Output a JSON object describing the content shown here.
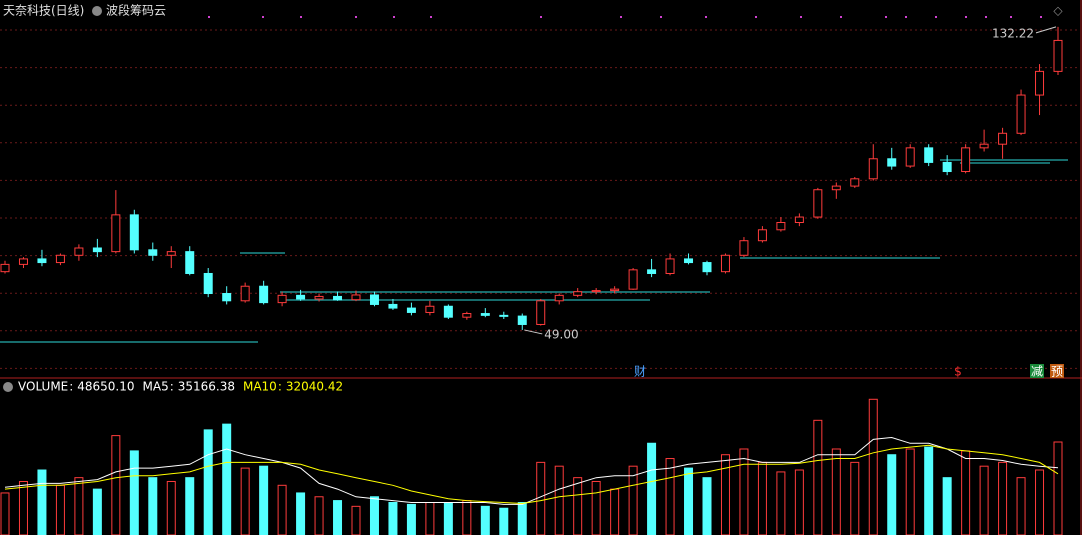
{
  "chart_data": [
    {
      "type": "candlestick",
      "title": "天奈科技(日线)",
      "subtitle": "波段筹码云",
      "ylim": [
        35.8,
        139.6
      ],
      "up_color": "#ff3c3c",
      "down_color": "#54ffff",
      "open": [
        65,
        67,
        68.5,
        67.5,
        69.5,
        71.5,
        70.5,
        80.6,
        71,
        69.5,
        70.5,
        64.5,
        59,
        57,
        61,
        56.5,
        58.5,
        57.5,
        58.2,
        57.3,
        58.6,
        56,
        55,
        53.8,
        55.5,
        52.5,
        53.5,
        53,
        52.8,
        50.5,
        57,
        58.5,
        59.5,
        59.8,
        60.2,
        65.5,
        64.5,
        68.5,
        67.5,
        65,
        69.5,
        73.5,
        76.5,
        78.5,
        80,
        87.5,
        88.5,
        90.5,
        96,
        94,
        99,
        95,
        92.5,
        99,
        100,
        103,
        113.5,
        120
      ],
      "high": [
        68,
        69,
        71,
        70,
        72.5,
        74,
        87.4,
        82,
        73,
        72,
        72,
        66,
        61,
        62,
        62.5,
        59.5,
        60,
        59,
        59.5,
        59.8,
        59.5,
        57.5,
        56.5,
        57,
        56,
        54,
        55,
        54,
        53.5,
        57.5,
        59,
        60.5,
        60.5,
        61,
        66,
        68.5,
        70,
        70,
        68,
        70,
        74.5,
        77.5,
        80,
        81,
        88,
        89.5,
        91,
        100,
        99,
        100,
        100,
        97,
        100,
        104,
        104.5,
        115,
        122,
        132.22
      ],
      "low": [
        64.5,
        66,
        66.5,
        66.8,
        68,
        69,
        70,
        70,
        68,
        66,
        64,
        58,
        56,
        56.5,
        56,
        55.5,
        57,
        56.8,
        57,
        56.9,
        55.5,
        54.5,
        53,
        53,
        52,
        51.8,
        52.5,
        52,
        49,
        50.2,
        56,
        58,
        58.8,
        59,
        60,
        63.5,
        64,
        67,
        64,
        64.5,
        69,
        73,
        76,
        77.5,
        79.5,
        85,
        88,
        90,
        93,
        93.5,
        94,
        91.5,
        92,
        98,
        96,
        102.5,
        108,
        119
      ],
      "close": [
        67,
        68.5,
        67.5,
        69.5,
        71.5,
        70.5,
        80.6,
        71,
        69.5,
        70.5,
        64.5,
        59,
        57,
        61,
        56.5,
        58.5,
        57.5,
        58.2,
        57.3,
        58.6,
        56,
        55,
        53.8,
        55.5,
        52.5,
        53.5,
        53,
        52.8,
        50.5,
        57,
        58.5,
        59.5,
        59.8,
        60.2,
        65.5,
        64.5,
        68.5,
        67.5,
        65,
        69.5,
        73.5,
        76.5,
        78.5,
        80,
        87.5,
        88.5,
        90.5,
        96,
        94,
        99,
        95,
        92.5,
        99,
        100,
        103,
        113.5,
        120,
        128.5
      ],
      "annotations": [
        {
          "value": 132.22,
          "label": "132.22"
        },
        {
          "value": 49,
          "label": "49.00"
        }
      ],
      "events": [
        "财",
        "$",
        "减",
        "预"
      ]
    },
    {
      "type": "volume",
      "ylim": [
        0,
        79000
      ],
      "series": [
        {
          "name": "VOLUME",
          "label": "48650.10",
          "color": "#ffffff",
          "values": [
            22000,
            28000,
            34000,
            26000,
            30000,
            24000,
            52000,
            44000,
            30000,
            28000,
            30000,
            55000,
            58000,
            35000,
            36000,
            26000,
            22000,
            20000,
            18000,
            15000,
            20000,
            17000,
            16000,
            17000,
            17000,
            18000,
            15000,
            14000,
            17000,
            38000,
            36000,
            30000,
            28000,
            24000,
            36000,
            48000,
            40000,
            35000,
            30000,
            42000,
            45000,
            38000,
            33000,
            34000,
            60000,
            45000,
            38000,
            71000,
            42000,
            45000,
            46000,
            30000,
            44000,
            36000,
            38000,
            30000,
            34000,
            48650
          ]
        },
        {
          "name": "MA5",
          "label": "35166.38",
          "color": "#ffffff",
          "values": [
            25000,
            26000,
            27000,
            27000,
            28000,
            29000,
            33000,
            35000,
            35000,
            36000,
            37000,
            42000,
            45000,
            42000,
            40000,
            38000,
            35000,
            27000,
            24000,
            20000,
            19000,
            18000,
            17000,
            17000,
            17000,
            17000,
            17000,
            16000,
            16000,
            20000,
            24000,
            27000,
            30000,
            31000,
            31000,
            34000,
            35000,
            37000,
            38000,
            39000,
            40000,
            38000,
            38000,
            38000,
            42000,
            42000,
            42000,
            50000,
            51000,
            48000,
            48000,
            45000,
            40000,
            40000,
            39000,
            37000,
            36000,
            35166.38
          ]
        },
        {
          "name": "MA10",
          "label": "32040.42",
          "color": "#ffff00",
          "values": [
            24000,
            25000,
            26000,
            26000,
            27000,
            28000,
            30000,
            31000,
            31000,
            32000,
            33000,
            36000,
            38000,
            38000,
            38000,
            38000,
            37000,
            34000,
            32000,
            30000,
            28000,
            26000,
            23000,
            21000,
            19000,
            18000,
            17500,
            17000,
            16500,
            18000,
            20000,
            21000,
            22000,
            24000,
            26000,
            28000,
            30000,
            32000,
            33000,
            35000,
            37000,
            37000,
            37000,
            37500,
            39000,
            40000,
            40000,
            43000,
            45000,
            46000,
            47000,
            45000,
            44000,
            43000,
            42000,
            40000,
            38000,
            32040.42
          ]
        }
      ]
    }
  ]
}
